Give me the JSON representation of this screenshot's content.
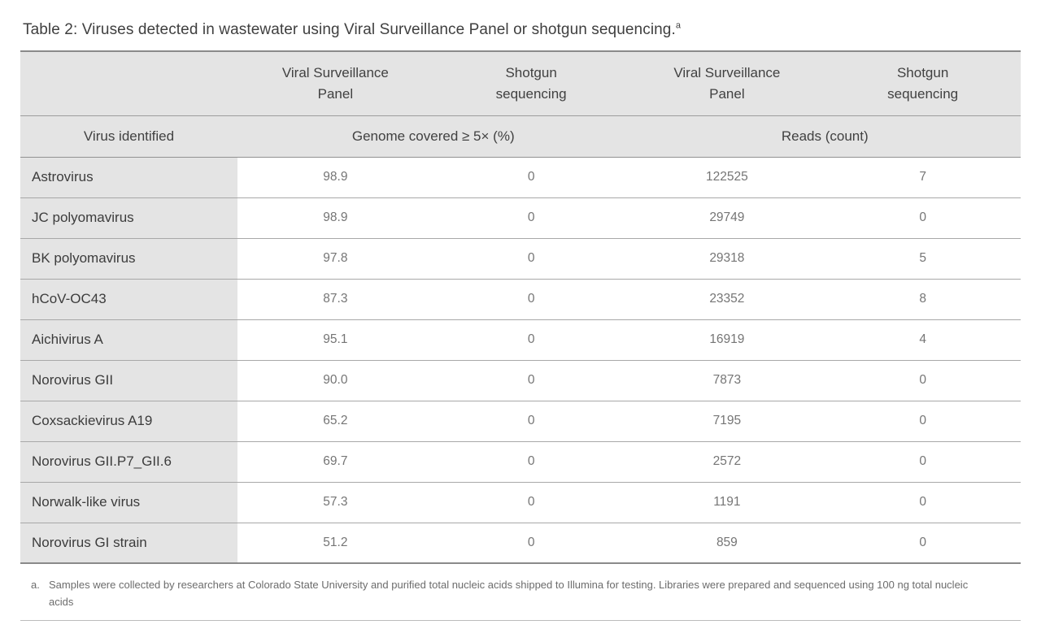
{
  "title": {
    "text": "Table 2: Viruses detected in wastewater using Viral Surveillance Panel or shotgun sequencing.",
    "superscript": "a"
  },
  "table": {
    "row_header": "Virus identified",
    "column_group_headers": [
      "Viral Surveillance\nPanel",
      "Shotgun\nsequencing",
      "Viral Surveillance\nPanel",
      "Shotgun\nsequencing"
    ],
    "section_headers": {
      "coverage": "Genome covered ≥ 5× (%)",
      "reads": "Reads (count)"
    },
    "rows": [
      {
        "virus": "Astrovirus",
        "vsp_coverage": "98.9",
        "shotgun_coverage": "0",
        "vsp_reads": "122525",
        "shotgun_reads": "7"
      },
      {
        "virus": "JC polyomavirus",
        "vsp_coverage": "98.9",
        "shotgun_coverage": "0",
        "vsp_reads": "29749",
        "shotgun_reads": "0"
      },
      {
        "virus": "BK polyomavirus",
        "vsp_coverage": "97.8",
        "shotgun_coverage": "0",
        "vsp_reads": "29318",
        "shotgun_reads": "5"
      },
      {
        "virus": "hCoV-OC43",
        "vsp_coverage": "87.3",
        "shotgun_coverage": "0",
        "vsp_reads": "23352",
        "shotgun_reads": "8"
      },
      {
        "virus": "Aichivirus A",
        "vsp_coverage": "95.1",
        "shotgun_coverage": "0",
        "vsp_reads": "16919",
        "shotgun_reads": "4"
      },
      {
        "virus": "Norovirus GII",
        "vsp_coverage": "90.0",
        "shotgun_coverage": "0",
        "vsp_reads": "7873",
        "shotgun_reads": "0"
      },
      {
        "virus": "Coxsackievirus A19",
        "vsp_coverage": "65.2",
        "shotgun_coverage": "0",
        "vsp_reads": "7195",
        "shotgun_reads": "0"
      },
      {
        "virus": "Norovirus GII.P7_GII.6",
        "vsp_coverage": "69.7",
        "shotgun_coverage": "0",
        "vsp_reads": "2572",
        "shotgun_reads": "0"
      },
      {
        "virus": "Norwalk-like virus",
        "vsp_coverage": "57.3",
        "shotgun_coverage": "0",
        "vsp_reads": "1191",
        "shotgun_reads": "0"
      },
      {
        "virus": "Norovirus GI strain",
        "vsp_coverage": "51.2",
        "shotgun_coverage": "0",
        "vsp_reads": "859",
        "shotgun_reads": "0"
      }
    ]
  },
  "footnote": {
    "marker": "a.",
    "text": "Samples were collected by researchers at Colorado State University and purified total nucleic acids shipped to Illumina for testing. Libraries were prepared and sequenced using 100 ng total nucleic acids"
  },
  "colors": {
    "header_bg": "#e4e4e4",
    "row_label_bg": "#e4e4e4",
    "border_strong": "#8a8a8a",
    "border_light": "#a8a8a8",
    "text_primary": "#3d3d3d",
    "text_secondary": "#757575",
    "footnote_text": "#6c6c6c"
  }
}
